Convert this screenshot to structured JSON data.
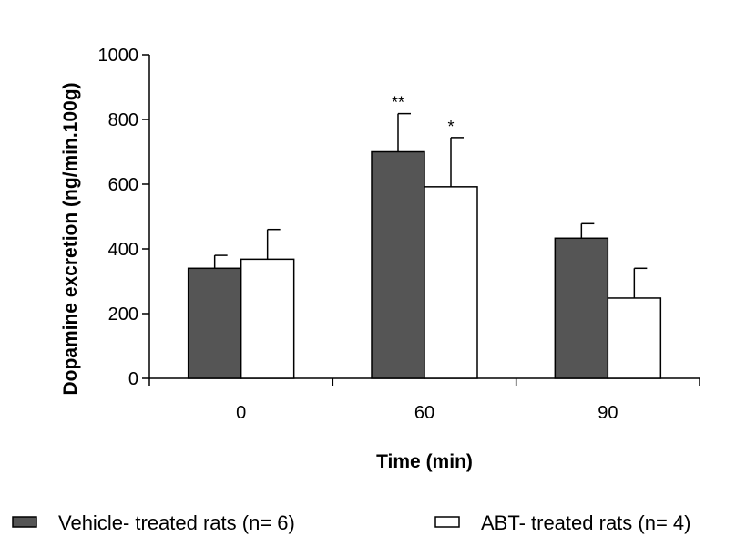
{
  "chart_data": {
    "type": "bar",
    "title": "",
    "xlabel": "Time (min)",
    "ylabel": "Dopamine excretion (ng/min.100g)",
    "ylim": [
      0,
      1000
    ],
    "yticks": [
      0,
      200,
      400,
      600,
      800,
      1000
    ],
    "categories": [
      "0",
      "60",
      "90"
    ],
    "series": [
      {
        "name": "Vehicle- treated rats (n= 6)",
        "color": "#555555",
        "values": [
          340,
          700,
          433
        ],
        "error": [
          40,
          118,
          45
        ],
        "annotations": [
          "",
          "**",
          ""
        ]
      },
      {
        "name": "ABT- treated rats (n= 4)",
        "color": "#ffffff",
        "values": [
          368,
          592,
          248
        ],
        "error": [
          92,
          152,
          92
        ],
        "annotations": [
          "",
          "*",
          ""
        ]
      }
    ],
    "legend": "bottom",
    "grid": false
  }
}
